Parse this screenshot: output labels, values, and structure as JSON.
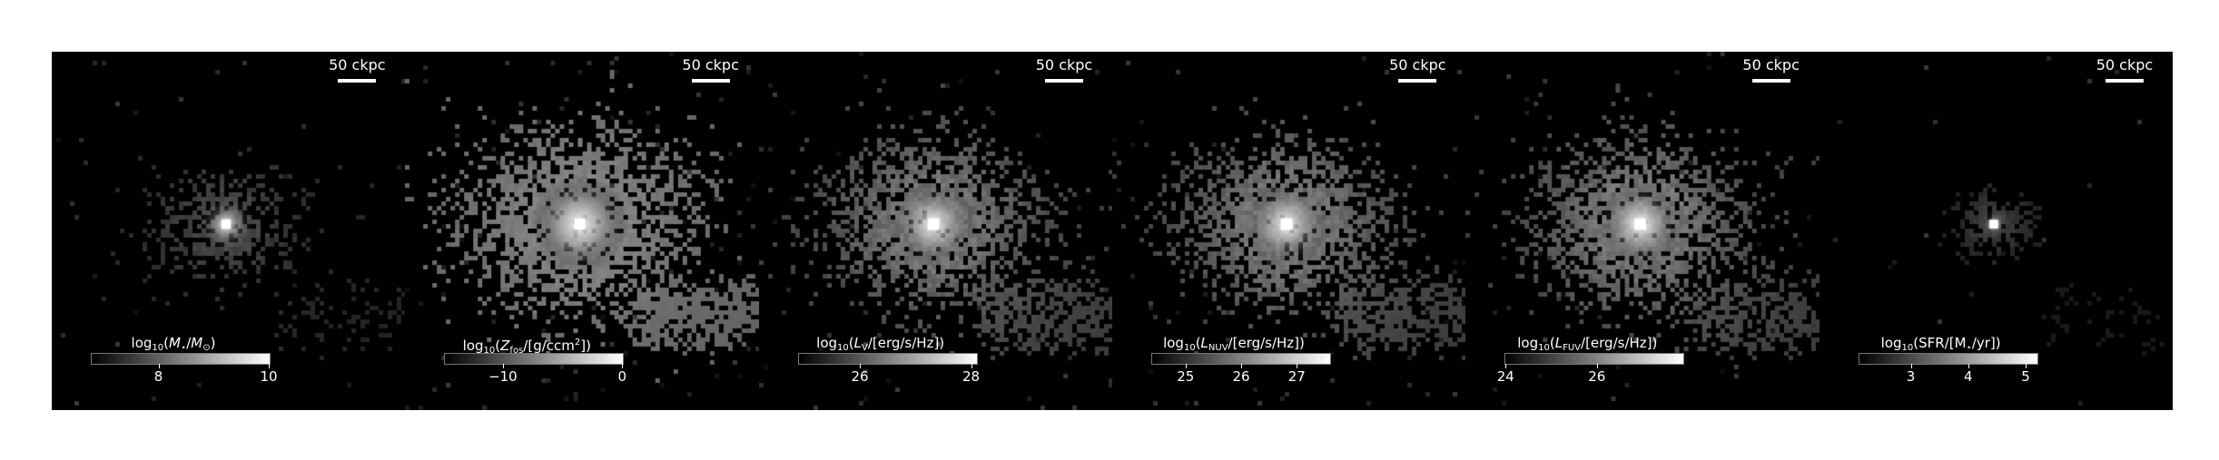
{
  "scalebar_label": "50 ckpc",
  "colormap": "gray",
  "background_color": "#000000",
  "panels": [
    {
      "id": "stellar-mass",
      "label_parts": [
        "log",
        "10",
        "(",
        "M",
        "⋆",
        "/",
        "M",
        "⊙",
        ")"
      ],
      "vmin": 6.8,
      "vmax": 10,
      "ticks": [
        8,
        10
      ],
      "tick_labels": [
        "8",
        "10"
      ],
      "pattern": "core"
    },
    {
      "id": "metals",
      "label_parts": [
        "log",
        "10",
        "(",
        "Z",
        "fos",
        "/[g/ccm",
        "2",
        "])"
      ],
      "vmin": -14.8,
      "vmax": 0,
      "ticks": [
        -10,
        0
      ],
      "tick_labels": [
        "−10",
        "0"
      ],
      "pattern": "dense"
    },
    {
      "id": "luminosity-v",
      "label_parts": [
        "log",
        "10",
        "(",
        "L",
        "V",
        "/[erg/s/Hz])"
      ],
      "vmin": 24.9,
      "vmax": 28.1,
      "ticks": [
        26,
        28
      ],
      "tick_labels": [
        "26",
        "28"
      ],
      "pattern": "medium"
    },
    {
      "id": "luminosity-nuv",
      "label_parts": [
        "log",
        "10",
        "(",
        "L",
        "NUV",
        "/[erg/s/Hz])"
      ],
      "vmin": 24.4,
      "vmax": 27.6,
      "ticks": [
        25,
        26,
        27
      ],
      "tick_labels": [
        "25",
        "26",
        "27"
      ],
      "pattern": "medium"
    },
    {
      "id": "luminosity-fuv",
      "label_parts": [
        "log",
        "10",
        "(",
        "L",
        "FUV",
        "/[erg/s/Hz])"
      ],
      "vmin": 24,
      "vmax": 27.9,
      "ticks": [
        24,
        26
      ],
      "tick_labels": [
        "24",
        "26"
      ],
      "pattern": "medium"
    },
    {
      "id": "sfr",
      "label_parts": [
        "log",
        "10",
        "(SFR/[M",
        "⋆",
        "/yr])"
      ],
      "vmin": 2.1,
      "vmax": 5.2,
      "ticks": [
        3,
        4,
        5
      ],
      "tick_labels": [
        "3",
        "4",
        "5"
      ],
      "pattern": "sparse"
    }
  ]
}
